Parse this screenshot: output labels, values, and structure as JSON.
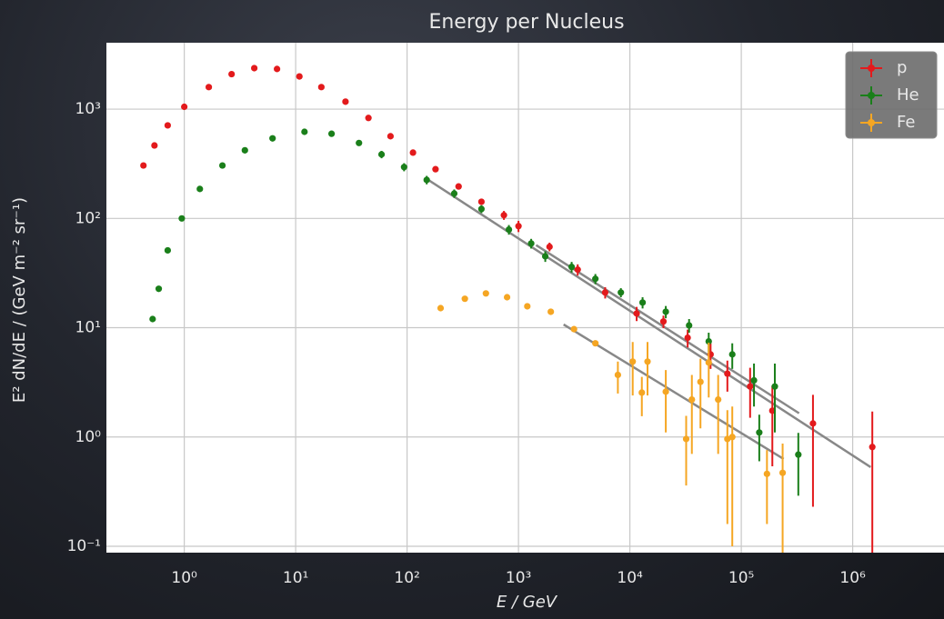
{
  "chart_data": {
    "type": "scatter",
    "title": "Energy per Nucleus",
    "x_label": "E / GeV",
    "y_label": "E² dN/dE / (GeV m⁻² sr⁻¹)",
    "log_x": true,
    "log_y": true,
    "grid": true,
    "legend": "upper right",
    "xlim": [
      0.2,
      6600000
    ],
    "ylim": [
      0.0875,
      4050
    ],
    "xticks": [
      {
        "value": 1,
        "label": "10⁰"
      },
      {
        "value": 10,
        "label": "10¹"
      },
      {
        "value": 100,
        "label": "10²"
      },
      {
        "value": 1000,
        "label": "10³"
      },
      {
        "value": 10000,
        "label": "10⁴"
      },
      {
        "value": 100000,
        "label": "10⁵"
      },
      {
        "value": 1000000,
        "label": "10⁶"
      }
    ],
    "yticks": [
      {
        "value": 0.1,
        "label": "10⁻¹"
      },
      {
        "value": 1,
        "label": "10⁰"
      },
      {
        "value": 10,
        "label": "10¹"
      },
      {
        "value": 100,
        "label": "10²"
      },
      {
        "value": 1000,
        "label": "10³"
      }
    ],
    "series": [
      {
        "name": "p",
        "color": "#e31a1c",
        "x": [
          0.43,
          0.54,
          0.71,
          1.0,
          1.66,
          2.66,
          4.25,
          6.8,
          10.8,
          17,
          28,
          45,
          71,
          113,
          180,
          290,
          465,
          740,
          1000,
          1900,
          3400,
          6000,
          11500,
          20000,
          33000,
          53000,
          75000,
          120000,
          190000,
          440000,
          1500000
        ],
        "values": [
          305,
          465,
          710,
          1050,
          1590,
          2090,
          2370,
          2330,
          1990,
          1590,
          1170,
          830,
          565,
          400,
          282,
          196,
          142,
          107,
          85,
          55,
          34,
          21,
          13.5,
          11.4,
          8.1,
          5.7,
          3.8,
          2.9,
          1.74,
          1.33,
          0.81
        ],
        "yerr": [
          null,
          null,
          null,
          null,
          null,
          null,
          null,
          null,
          null,
          null,
          null,
          null,
          null,
          null,
          null,
          null,
          null,
          10,
          10,
          5,
          4,
          2.5,
          2,
          1.5,
          1.5,
          1.5,
          1.2,
          1.4,
          1.2,
          1.1,
          0.9
        ]
      },
      {
        "name": "He",
        "color": "#1a7f1a",
        "x": [
          0.52,
          0.59,
          0.71,
          0.95,
          1.38,
          2.2,
          3.5,
          6.2,
          12,
          21,
          37,
          59,
          94,
          150,
          265,
          465,
          820,
          1300,
          1740,
          3000,
          4900,
          8300,
          13000,
          21000,
          34000,
          51000,
          83000,
          130000,
          145000,
          200000,
          325000
        ],
        "values": [
          12,
          22.7,
          51,
          100,
          186,
          305,
          420,
          540,
          620,
          595,
          490,
          385,
          295,
          225,
          169,
          122,
          79,
          59,
          45,
          36,
          28,
          21,
          17,
          14,
          10.5,
          7.5,
          5.7,
          3.3,
          1.1,
          2.9,
          0.69
        ],
        "yerr": [
          null,
          null,
          null,
          null,
          null,
          null,
          null,
          null,
          null,
          null,
          null,
          30,
          25,
          20,
          15,
          10,
          8,
          6,
          5,
          4,
          3,
          2,
          2,
          1.8,
          1.5,
          1.5,
          1.5,
          1.4,
          0.5,
          1.8,
          0.4
        ]
      },
      {
        "name": "Fe",
        "color": "#f5a623",
        "x": [
          200,
          330,
          510,
          790,
          1200,
          1950,
          3150,
          4900,
          7800,
          10600,
          12800,
          14400,
          21000,
          32000,
          36000,
          43000,
          51000,
          62000,
          75000,
          83000,
          170000,
          235000
        ],
        "values": [
          15.1,
          18.4,
          20.6,
          19,
          15.7,
          14,
          9.7,
          7.2,
          3.7,
          4.9,
          2.55,
          4.9,
          2.6,
          0.96,
          2.2,
          3.2,
          4.8,
          2.2,
          0.96,
          1.0,
          0.46,
          0.47
        ],
        "yerr": [
          null,
          null,
          null,
          null,
          null,
          null,
          null,
          null,
          1.2,
          2.5,
          1.0,
          2.5,
          1.5,
          0.6,
          1.5,
          2.0,
          2.5,
          1.5,
          0.8,
          0.9,
          0.3,
          0.4
        ]
      }
    ],
    "fit_lines": [
      {
        "color": "#888888",
        "x": [
          150,
          1450000
        ],
        "values": [
          230,
          0.53
        ]
      },
      {
        "color": "#888888",
        "x": [
          1440,
          330000
        ],
        "values": [
          57,
          1.65
        ]
      },
      {
        "color": "#888888",
        "x": [
          2540,
          240000
        ],
        "values": [
          10.7,
          0.63
        ]
      }
    ]
  }
}
